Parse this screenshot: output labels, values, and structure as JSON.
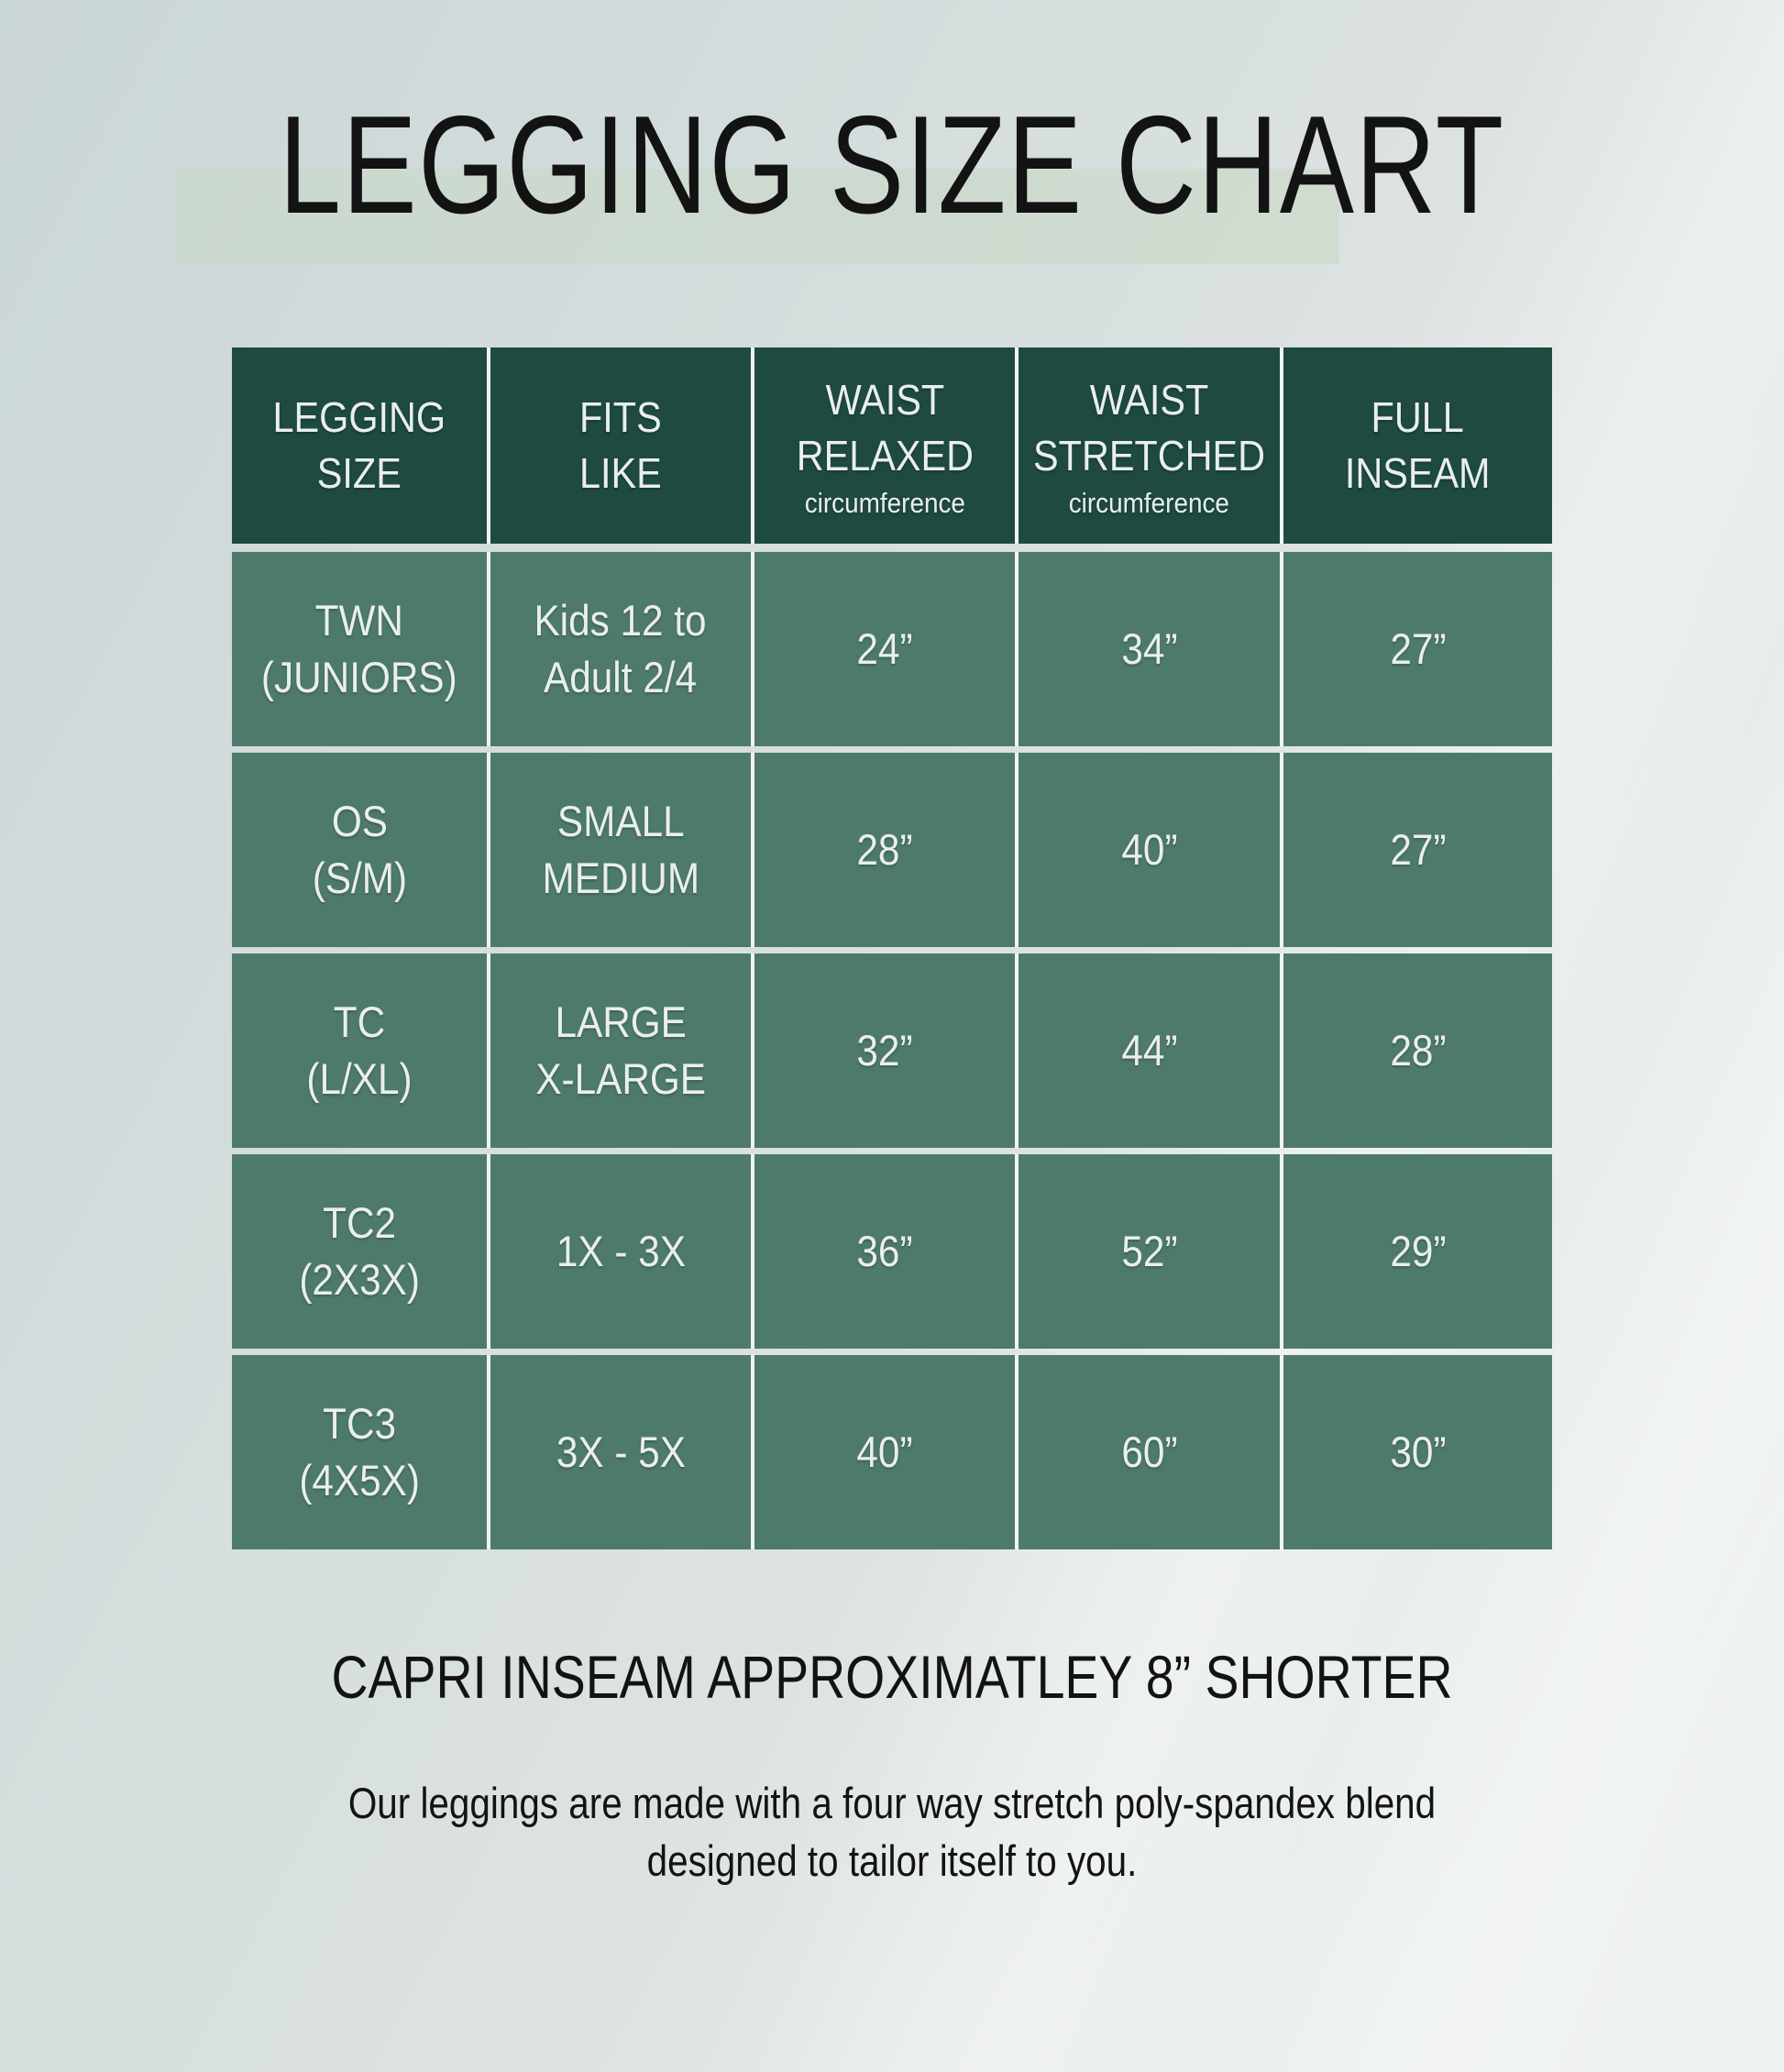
{
  "title": "LEGGING SIZE CHART",
  "table": {
    "columns": [
      {
        "label": "LEGGING\nSIZE",
        "sub": ""
      },
      {
        "label": "FITS\nLIKE",
        "sub": ""
      },
      {
        "label": "WAIST\nRELAXED",
        "sub": "circumference"
      },
      {
        "label": "WAIST\nSTRETCHED",
        "sub": "circumference"
      },
      {
        "label": "FULL\nINSEAM",
        "sub": ""
      }
    ],
    "rows": [
      [
        "TWN\n(JUNIORS)",
        "Kids 12 to\nAdult 2/4",
        "24”",
        "34”",
        "27”"
      ],
      [
        "OS\n(S/M)",
        "SMALL\nMEDIUM",
        "28”",
        "40”",
        "27”"
      ],
      [
        "TC\n(L/XL)",
        "LARGE\nX-LARGE",
        "32”",
        "44”",
        "28”"
      ],
      [
        "TC2\n(2X3X)",
        "1X - 3X",
        "36”",
        "52”",
        "29”"
      ],
      [
        "TC3\n(4X5X)",
        "3X - 5X",
        "40”",
        "60”",
        "30”"
      ]
    ]
  },
  "footer": {
    "capri_note": "CAPRI INSEAM APPROXIMATLEY 8” SHORTER",
    "description": "Our leggings are made with a four way stretch poly-spandex blend\ndesigned to tailor itself to you."
  },
  "colors": {
    "bg-top": "#cbd6d8",
    "bg-bottom": "#eef1f1",
    "header-green": "#1e4a41",
    "cell-green": "#4e7a6c",
    "divider": "#f0f4f2",
    "band": "#cad8c7",
    "text-dark": "#131313",
    "text-light": "#e9efec"
  },
  "chart_data": {
    "type": "table",
    "title": "LEGGING SIZE CHART",
    "columns": [
      "LEGGING SIZE",
      "FITS LIKE",
      "WAIST RELAXED circumference",
      "WAIST STRETCHED circumference",
      "FULL INSEAM"
    ],
    "rows": [
      [
        "TWN (JUNIORS)",
        "Kids 12 to Adult 2/4",
        "24”",
        "34”",
        "27”"
      ],
      [
        "OS (S/M)",
        "SMALL MEDIUM",
        "28”",
        "40”",
        "27”"
      ],
      [
        "TC (L/XL)",
        "LARGE X-LARGE",
        "32”",
        "44”",
        "28”"
      ],
      [
        "TC2 (2X3X)",
        "1X - 3X",
        "36”",
        "52”",
        "29”"
      ],
      [
        "TC3 (4X5X)",
        "3X - 5X",
        "40”",
        "60”",
        "30”"
      ]
    ],
    "waist_relaxed_in": [
      24,
      28,
      32,
      36,
      40
    ],
    "waist_stretched_in": [
      34,
      40,
      44,
      52,
      60
    ],
    "full_inseam_in": [
      27,
      27,
      28,
      29,
      30
    ],
    "notes": [
      "CAPRI INSEAM APPROXIMATLEY 8” SHORTER",
      "Our leggings are made with a four way stretch poly-spandex blend designed to tailor itself to you."
    ]
  }
}
